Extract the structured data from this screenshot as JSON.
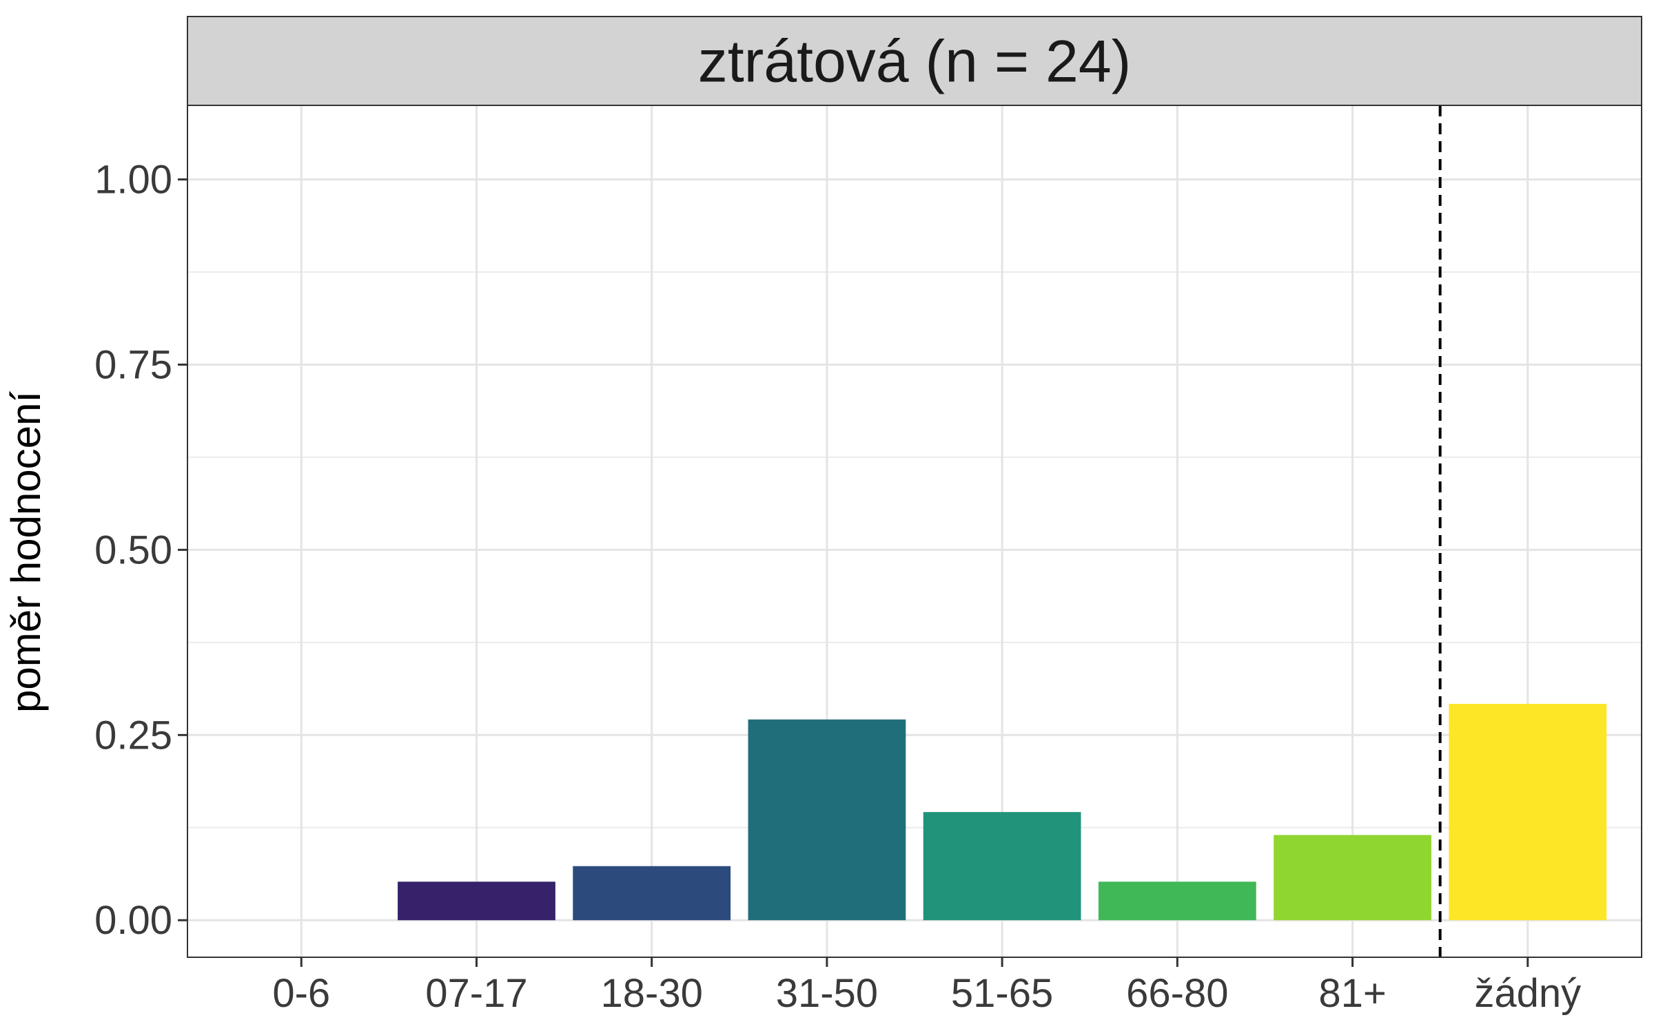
{
  "chart_data": {
    "type": "bar",
    "title": "ztrátová (n = 24)",
    "xlabel": "",
    "ylabel": "poměr hodnocení",
    "categories": [
      "0-6",
      "07-17",
      "18-30",
      "31-50",
      "51-65",
      "66-80",
      "81+",
      "žádný"
    ],
    "values": [
      0,
      0.052,
      0.073,
      0.271,
      0.146,
      0.052,
      0.115,
      0.292
    ],
    "colors": [
      "#440154",
      "#35226b",
      "#2c4a7c",
      "#216e7b",
      "#21937a",
      "#41b857",
      "#90d630",
      "#fde625"
    ],
    "ylim": [
      -0.05,
      1.1
    ],
    "yticks": [
      0,
      0.25,
      0.5,
      0.75,
      1
    ],
    "ytick_labels": [
      "0.00",
      "0.25",
      "0.50",
      "0.75",
      "1.00"
    ],
    "reference_line": {
      "between": [
        "81+",
        "žádný"
      ],
      "style": "dashed",
      "color": "#000000"
    },
    "grid": true,
    "legend": "none"
  }
}
